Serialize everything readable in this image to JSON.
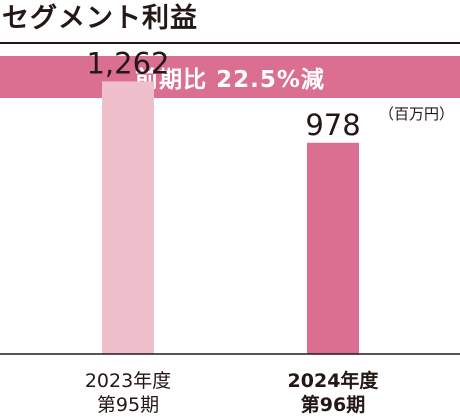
{
  "page": {
    "title": "セグメント利益",
    "banner": "前期比 22.5%減",
    "unit": "（百万円）"
  },
  "colors": {
    "banner": "#db6f91",
    "bar_previous": "#f0bfcc",
    "bar_current": "#db6f91",
    "text": "#231815"
  },
  "chart_data": {
    "type": "bar",
    "title": "セグメント利益",
    "unit": "百万円",
    "categories": [
      {
        "year": "2023年度",
        "period": "第95期"
      },
      {
        "year": "2024年度",
        "period": "第96期"
      }
    ],
    "series": [
      {
        "values": [
          1262,
          978
        ],
        "labels": [
          "1,262",
          "978"
        ]
      }
    ],
    "annotation": "前期比 22.5%減",
    "ylim": [
      0,
      5000
    ],
    "grid": false,
    "legend": "none"
  }
}
